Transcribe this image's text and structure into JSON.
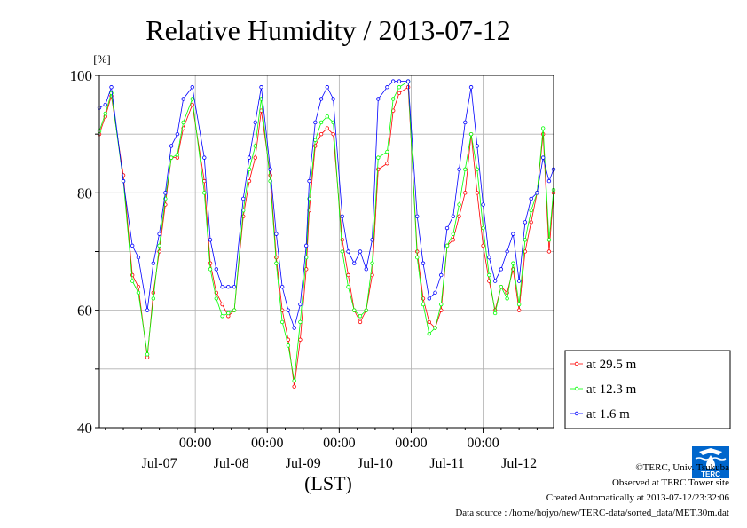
{
  "chart_data": {
    "type": "line",
    "title": "Relative Humidity / 2013-07-12",
    "ylabel": "[%]",
    "xlabel": "(LST)",
    "ylim": [
      40,
      100
    ],
    "yticks": [
      "100",
      "80",
      "60",
      "40"
    ],
    "xlim": [
      "2013-07-06T16:00",
      "2013-07-12T23:30"
    ],
    "x_time_ticks": [
      "00:00",
      "00:00",
      "00:00",
      "00:00",
      "00:00"
    ],
    "x_date_labels": [
      "Jul-07",
      "Jul-08",
      "Jul-09",
      "Jul-10",
      "Jul-11",
      "Jul-12"
    ],
    "grid": true,
    "legend_position": "lower-right outside",
    "x": [
      "2013-07-06T16:00",
      "2013-07-06T18:00",
      "2013-07-06T20:00",
      "2013-07-07T00:00",
      "2013-07-07T03:00",
      "2013-07-07T05:00",
      "2013-07-07T08:00",
      "2013-07-07T10:00",
      "2013-07-07T12:00",
      "2013-07-07T14:00",
      "2013-07-07T16:00",
      "2013-07-07T18:00",
      "2013-07-07T20:00",
      "2013-07-07T23:00",
      "2013-07-08T03:00",
      "2013-07-08T05:00",
      "2013-07-08T07:00",
      "2013-07-08T09:00",
      "2013-07-08T11:00",
      "2013-07-08T13:00",
      "2013-07-08T16:00",
      "2013-07-08T18:00",
      "2013-07-08T20:00",
      "2013-07-08T22:00",
      "2013-07-09T01:00",
      "2013-07-09T03:00",
      "2013-07-09T05:00",
      "2013-07-09T07:00",
      "2013-07-09T09:00",
      "2013-07-09T11:00",
      "2013-07-09T13:00",
      "2013-07-09T14:00",
      "2013-07-09T16:00",
      "2013-07-09T18:00",
      "2013-07-09T20:00",
      "2013-07-09T22:00",
      "2013-07-10T01:00",
      "2013-07-10T03:00",
      "2013-07-10T05:00",
      "2013-07-10T07:00",
      "2013-07-10T09:00",
      "2013-07-10T11:00",
      "2013-07-10T13:00",
      "2013-07-10T16:00",
      "2013-07-10T18:00",
      "2013-07-10T20:00",
      "2013-07-10T23:00",
      "2013-07-11T02:00",
      "2013-07-11T04:00",
      "2013-07-11T06:00",
      "2013-07-11T08:00",
      "2013-07-11T10:00",
      "2013-07-11T12:00",
      "2013-07-11T14:00",
      "2013-07-11T16:00",
      "2013-07-11T18:00",
      "2013-07-11T20:00",
      "2013-07-11T22:00",
      "2013-07-12T00:00",
      "2013-07-12T02:00",
      "2013-07-12T04:00",
      "2013-07-12T06:00",
      "2013-07-12T08:00",
      "2013-07-12T10:00",
      "2013-07-12T12:00",
      "2013-07-12T14:00",
      "2013-07-12T16:00",
      "2013-07-12T18:00",
      "2013-07-12T20:00",
      "2013-07-12T22:00",
      "2013-07-12T23:30"
    ],
    "series": [
      {
        "name": "at 29.5 m",
        "color": "#ff0000",
        "values": [
          90,
          93,
          96.5,
          83,
          66,
          64,
          52,
          63,
          70,
          78,
          86,
          86,
          91,
          95,
          82,
          68,
          63,
          61,
          59,
          60,
          76,
          82,
          86,
          94,
          83,
          69,
          60,
          55,
          47,
          55,
          67,
          77,
          88,
          90,
          91,
          90,
          72,
          66,
          60,
          58,
          60,
          66,
          84,
          85,
          94,
          97,
          98,
          70,
          62,
          58,
          57,
          60,
          71,
          72,
          76,
          80,
          90,
          80,
          71,
          65,
          60,
          64,
          63,
          67,
          60,
          70,
          75,
          80,
          90,
          70,
          80
        ]
      },
      {
        "name": "at 12.3 m",
        "color": "#00ff00",
        "values": [
          90.5,
          93.5,
          97,
          82,
          65,
          63,
          52.5,
          62,
          71,
          79,
          86,
          86.5,
          92,
          96,
          80,
          67,
          62,
          59,
          59.5,
          60,
          77,
          84,
          88,
          96,
          82,
          68,
          58,
          54,
          48,
          58,
          69,
          79,
          89,
          92,
          93,
          92,
          70,
          64,
          60,
          59,
          60,
          68,
          86,
          87,
          96,
          98,
          99,
          69,
          61,
          56,
          57,
          61,
          71,
          73,
          78,
          84,
          90,
          84,
          74,
          66,
          59.5,
          64,
          62,
          68,
          61,
          72,
          77,
          80,
          91,
          72,
          80.5
        ]
      },
      {
        "name": "at 1.6 m",
        "color": "#0000ff",
        "values": [
          94.5,
          95,
          98,
          82,
          71,
          69,
          60,
          68,
          73,
          80,
          88,
          90,
          96,
          98,
          86,
          72,
          67,
          64,
          64,
          64,
          79,
          86,
          92,
          98,
          84,
          73,
          64,
          60,
          57,
          61,
          71,
          82,
          92,
          96,
          98,
          96,
          76,
          70,
          68,
          70,
          67,
          72,
          96,
          98,
          99,
          99,
          99,
          76,
          68,
          62,
          63,
          66,
          74,
          76,
          84,
          92,
          98,
          88,
          78,
          69,
          65,
          67,
          70,
          73,
          65,
          75,
          79,
          80,
          86,
          82,
          84
        ]
      }
    ]
  },
  "footer": {
    "copyright": "©TERC, Univ. Tsukuba",
    "observed": "Observed at TERC Tower site",
    "created": "Created Automatically at 2013-07-12/23:32:06",
    "source": "Data source : /home/hojyo/new/TERC-data/sorted_data/MET.30m.dat"
  },
  "logo": {
    "text": "TERC",
    "color": "#0066cc"
  }
}
